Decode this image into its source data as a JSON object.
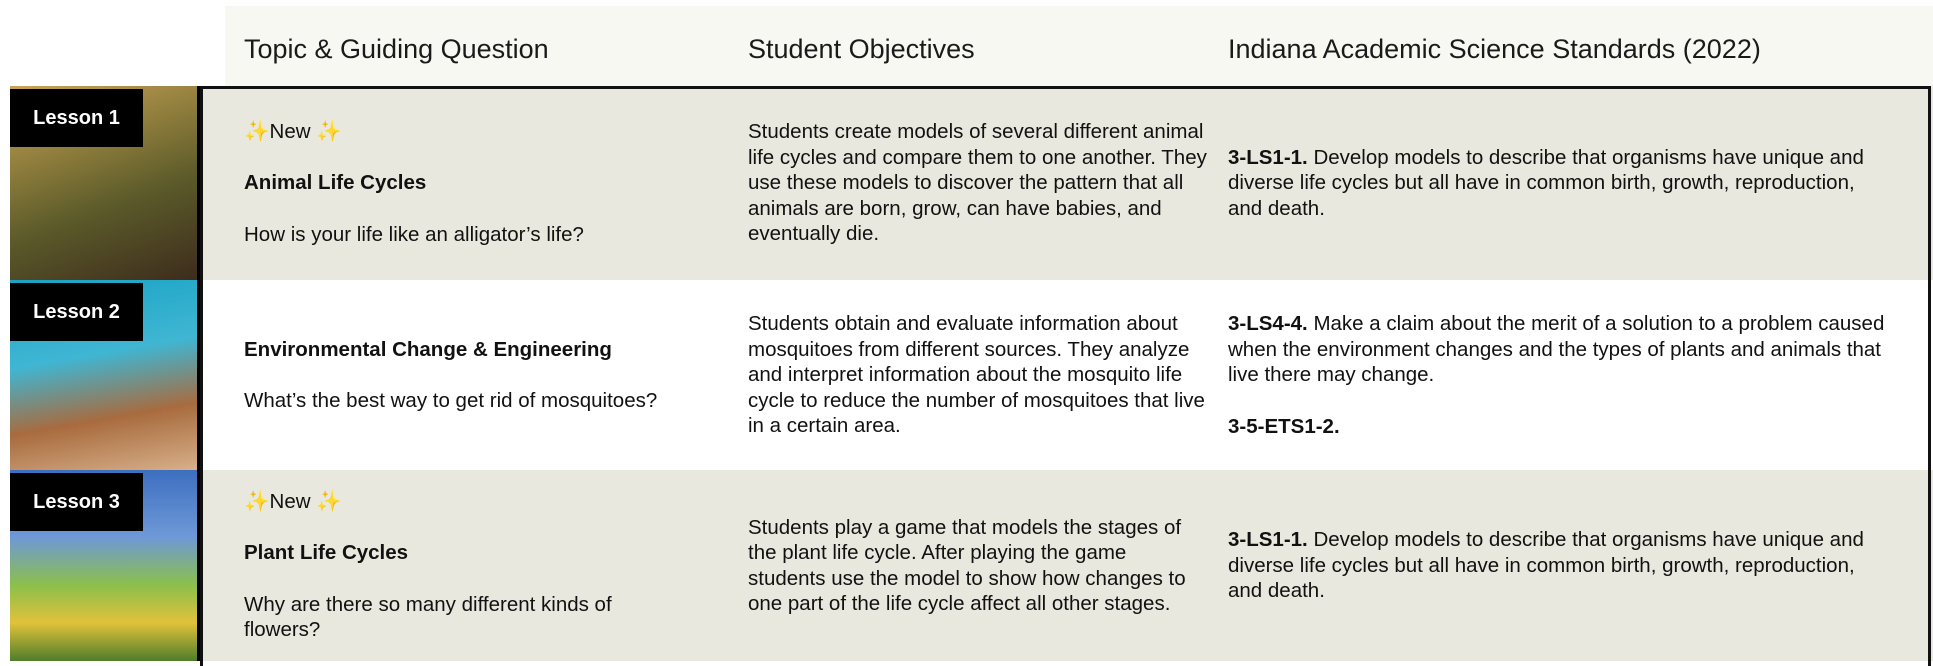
{
  "header": {
    "columns": [
      "Topic & Guiding Question",
      "Student Objectives",
      "Indiana Academic Science Standards (2022)"
    ]
  },
  "rows": [
    {
      "lesson": "Lesson 1",
      "badge": "✨New ✨",
      "title": "Animal Life Cycles",
      "question": "How is your life like an alligator’s life?",
      "objectives": "Students create models of several different animal life cycles and compare them to one another. They use these models to discover the pattern that all animals are born, grow, can have babies, and eventually die.",
      "standards": [
        {
          "code": "3-LS1-1.",
          "text": "Develop models to describe that organisms have unique and diverse life cycles but all have in common birth, growth, reproduction, and death."
        }
      ]
    },
    {
      "lesson": "Lesson 2",
      "title": "Environmental Change & Engineering",
      "question": "What’s the best way to get rid of mosquitoes?",
      "objectives": "Students obtain and evaluate information about mosquitoes from different sources. They analyze and interpret information about the mosquito life cycle to reduce the number of mosquitoes that live in a certain area.",
      "standards": [
        {
          "code": "3-LS4-4.",
          "text": "Make a claim about the merit of a solution to a problem caused when the environment changes and the types of plants and animals that live there may change."
        },
        {
          "code": "3-5-ETS1-2."
        }
      ]
    },
    {
      "lesson": "Lesson 3",
      "badge": "✨New ✨",
      "title": "Plant Life Cycles",
      "question": "Why are there so many different kinds of flowers?",
      "objectives": "Students play a game that models the stages of the plant life cycle. After playing the game students use the model to show how changes to one part of the life cycle affect all other stages.",
      "standards": [
        {
          "code": "3-LS1-1.",
          "text": "Develop models to describe that organisms have unique and diverse life cycles but all have in common birth, growth, reproduction, and death."
        }
      ]
    }
  ]
}
